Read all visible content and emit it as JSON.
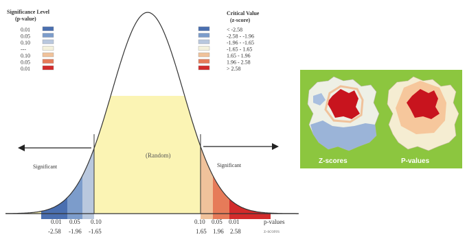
{
  "significance_legend": {
    "title_line1": "Significance Level",
    "title_line2": "(p-value)",
    "rows": [
      {
        "label": "0.01",
        "color": "#4a6fb0"
      },
      {
        "label": "0.05",
        "color": "#7c9ccb"
      },
      {
        "label": "0.10",
        "color": "#b9c8de"
      },
      {
        "label": "---",
        "color": "#f4f1dc"
      },
      {
        "label": "0.10",
        "color": "#f0c29b"
      },
      {
        "label": "0.05",
        "color": "#e67b59"
      },
      {
        "label": "0.01",
        "color": "#d22b2b"
      }
    ]
  },
  "critical_legend": {
    "title_line1": "Critical Value",
    "title_line2": "(z-score)",
    "rows": [
      {
        "label": "< -2.58"
      },
      {
        "label": "-2.58 - -1.96"
      },
      {
        "label": "-1.96 - -1.65"
      },
      {
        "label": "-1.65 - 1.65"
      },
      {
        "label": "1.65 - 1.96"
      },
      {
        "label": "1.96 - 2.58"
      },
      {
        "label": "> 2.58"
      }
    ]
  },
  "curve": {
    "center_label": "(Random)",
    "left_label": "Significant",
    "right_label": "Significant",
    "fill_color": "#fbf4b4"
  },
  "axis": {
    "left_p_values": [
      "0.01",
      "0.05",
      "0.10"
    ],
    "left_z_scores": [
      "-2.58",
      "-1.96",
      "-1.65"
    ],
    "right_p_values": [
      "0.10",
      "0.05",
      "0.01"
    ],
    "right_z_scores": [
      "1.65",
      "1.96",
      "2.58"
    ],
    "p_values_label": "p-values",
    "z_scores_label": "z-scores"
  },
  "maps": {
    "z_label": "Z-scores",
    "p_label": "P-values",
    "panel_color": "#8cc63f"
  }
}
